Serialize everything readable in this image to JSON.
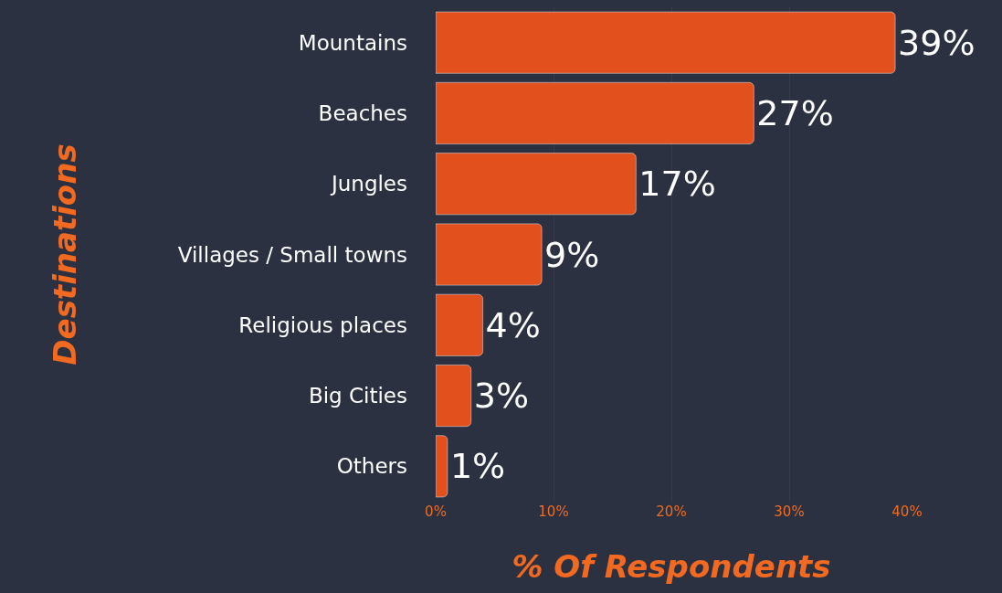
{
  "chart_data": {
    "type": "bar",
    "orientation": "horizontal",
    "categories": [
      "Mountains",
      "Beaches",
      "Jungles",
      "Villages / Small towns",
      "Religious places",
      "Big Cities",
      "Others"
    ],
    "values": [
      39,
      27,
      17,
      9,
      4,
      3,
      1
    ],
    "value_labels": [
      "39%",
      "27%",
      "17%",
      "9%",
      "4%",
      "3%",
      "1%"
    ],
    "color": "#e2501e",
    "xlim": [
      0,
      40
    ],
    "xticks": [
      {
        "value": 0,
        "label": "0%"
      },
      {
        "value": 10,
        "label": "10%"
      },
      {
        "value": 20,
        "label": "20%"
      },
      {
        "value": 30,
        "label": "30%"
      },
      {
        "value": 40,
        "label": "40%"
      }
    ],
    "xlabel": "% Of Respondents",
    "ylabel": "Destinations",
    "grid": "x"
  }
}
